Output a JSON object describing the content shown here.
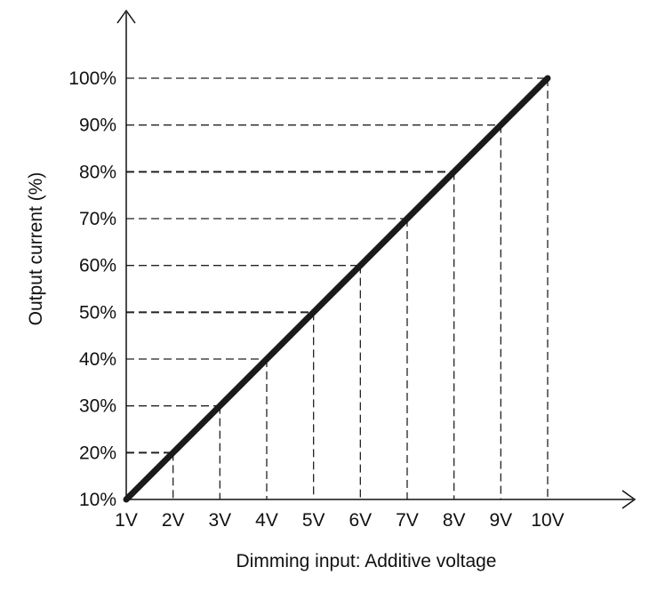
{
  "chart_data": {
    "type": "line",
    "title": "",
    "xlabel": "Dimming input: Additive voltage",
    "ylabel": "Output current (%)",
    "x_ticks": [
      "1V",
      "2V",
      "3V",
      "4V",
      "5V",
      "6V",
      "7V",
      "8V",
      "9V",
      "10V"
    ],
    "y_ticks": [
      "10%",
      "20%",
      "30%",
      "40%",
      "50%",
      "60%",
      "70%",
      "80%",
      "90%",
      "100%"
    ],
    "xlim": [
      1,
      10
    ],
    "ylim": [
      10,
      100
    ],
    "grid": "dashed guide lines at each data point",
    "series": [
      {
        "x": [
          1,
          2,
          3,
          4,
          5,
          6,
          7,
          8,
          9,
          10
        ],
        "y": [
          10,
          20,
          30,
          40,
          50,
          60,
          70,
          80,
          90,
          100
        ],
        "color": "#1a1a1a"
      }
    ]
  }
}
